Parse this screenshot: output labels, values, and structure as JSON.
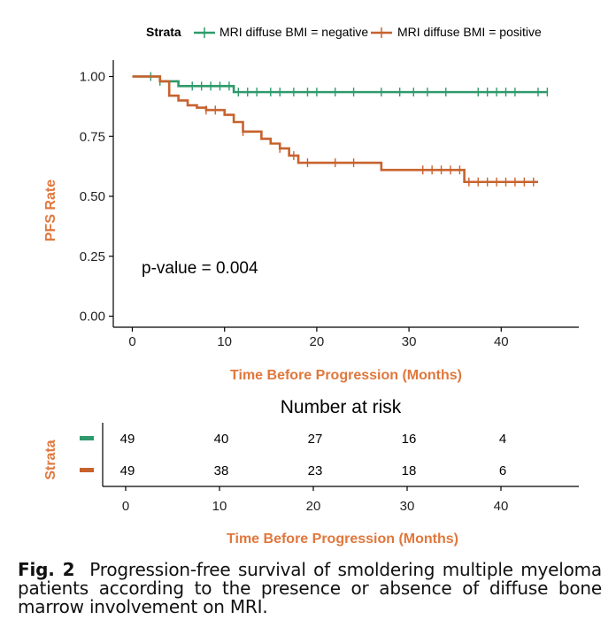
{
  "chart_data": {
    "type": "line",
    "subtype": "kaplan-meier",
    "legend": {
      "title": "Strata",
      "position": "top"
    },
    "xlabel": "Time Before Progression (Months)",
    "ylabel": "PFS Rate",
    "xlim": [
      -2,
      48
    ],
    "ylim": [
      0,
      1.05
    ],
    "xticks": [
      0,
      10,
      20,
      30,
      40
    ],
    "xtick_labels": [
      "0",
      "10",
      "20",
      "30",
      "40"
    ],
    "yticks": [
      0,
      0.25,
      0.5,
      0.75,
      1.0
    ],
    "ytick_labels": [
      "0.00",
      "0.25",
      "0.50",
      "0.75",
      "1.00"
    ],
    "annotation": "p-value = 0.004",
    "series": [
      {
        "name": "MRI diffuse BMI = negative",
        "color": "#2e9a6b",
        "steps": [
          [
            0,
            1.0
          ],
          [
            3,
            0.98
          ],
          [
            5,
            0.96
          ],
          [
            11,
            0.935
          ],
          [
            45,
            0.935
          ]
        ],
        "censored": [
          [
            2,
            1.0
          ],
          [
            3,
            0.98
          ],
          [
            6.5,
            0.96
          ],
          [
            7.5,
            0.96
          ],
          [
            8.5,
            0.96
          ],
          [
            9.5,
            0.96
          ],
          [
            10.5,
            0.96
          ],
          [
            11.5,
            0.935
          ],
          [
            12.5,
            0.935
          ],
          [
            13.5,
            0.935
          ],
          [
            15,
            0.935
          ],
          [
            16,
            0.935
          ],
          [
            17.5,
            0.935
          ],
          [
            19,
            0.935
          ],
          [
            20,
            0.935
          ],
          [
            22,
            0.935
          ],
          [
            24,
            0.935
          ],
          [
            27,
            0.935
          ],
          [
            29,
            0.935
          ],
          [
            30.5,
            0.935
          ],
          [
            32,
            0.935
          ],
          [
            34,
            0.935
          ],
          [
            37.5,
            0.935
          ],
          [
            38.5,
            0.935
          ],
          [
            39.5,
            0.935
          ],
          [
            40.5,
            0.935
          ],
          [
            41.5,
            0.935
          ],
          [
            44,
            0.935
          ],
          [
            45,
            0.935
          ]
        ]
      },
      {
        "name": "MRI diffuse BMI = positive",
        "color": "#c8622d",
        "steps": [
          [
            0,
            1.0
          ],
          [
            3,
            0.98
          ],
          [
            4,
            0.92
          ],
          [
            5,
            0.9
          ],
          [
            6,
            0.88
          ],
          [
            7,
            0.87
          ],
          [
            8,
            0.86
          ],
          [
            10,
            0.84
          ],
          [
            11,
            0.81
          ],
          [
            12,
            0.77
          ],
          [
            14,
            0.74
          ],
          [
            15,
            0.72
          ],
          [
            16,
            0.7
          ],
          [
            17,
            0.67
          ],
          [
            18,
            0.64
          ],
          [
            27,
            0.61
          ],
          [
            36,
            0.56
          ],
          [
            44,
            0.56
          ]
        ],
        "censored": [
          [
            8,
            0.86
          ],
          [
            9,
            0.86
          ],
          [
            12,
            0.77
          ],
          [
            16,
            0.7
          ],
          [
            17.5,
            0.67
          ],
          [
            19,
            0.64
          ],
          [
            22,
            0.64
          ],
          [
            24,
            0.64
          ],
          [
            31.5,
            0.61
          ],
          [
            32.5,
            0.61
          ],
          [
            33.5,
            0.61
          ],
          [
            34.5,
            0.61
          ],
          [
            35.5,
            0.61
          ],
          [
            36.5,
            0.56
          ],
          [
            37.5,
            0.56
          ],
          [
            38.5,
            0.56
          ],
          [
            39.5,
            0.56
          ],
          [
            40.5,
            0.56
          ],
          [
            41.5,
            0.56
          ],
          [
            42.5,
            0.56
          ],
          [
            43.5,
            0.56
          ]
        ]
      }
    ]
  },
  "risk_table": {
    "title": "Number at risk",
    "strata_label": "Strata",
    "xlabel": "Time Before Progression (Months)",
    "times": [
      "0",
      "10",
      "20",
      "30",
      "40"
    ],
    "rows": [
      {
        "color": "#2e9a6b",
        "values": [
          "49",
          "40",
          "27",
          "16",
          "4"
        ]
      },
      {
        "color": "#c8622d",
        "values": [
          "49",
          "38",
          "23",
          "18",
          "6"
        ]
      }
    ]
  },
  "axis_title_color": "#e0773c",
  "caption": {
    "label": "Fig. 2",
    "text": "Progression-free survival of smoldering multiple myeloma patients according to the presence or absence of diffuse bone marrow involvement on MRI."
  }
}
